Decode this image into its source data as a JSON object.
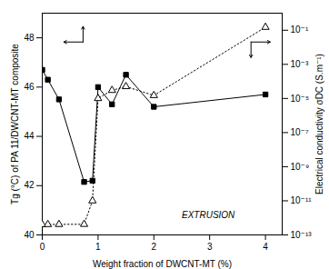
{
  "chart_data": {
    "type": "line",
    "xlabel": "Weight fraction of DWCNT-MT (%)",
    "ylabel": "Tg (°C) of PA 11/DWCNT-MT composite",
    "y2label": "Electrical conductivity σDC (S.m⁻¹)",
    "x": [
      0.0,
      0.1,
      0.3,
      0.75,
      0.9,
      1.0,
      1.25,
      1.5,
      2.0,
      4.0
    ],
    "series": [
      {
        "values": [
          46.7,
          46.3,
          45.5,
          42.15,
          42.2,
          46.0,
          45.3,
          46.5,
          45.2,
          45.7
        ],
        "color": "black",
        "marker": "square",
        "line_style": "solid"
      },
      {
        "values": [
          4e-13,
          4.1e-13,
          4.15e-13,
          4.2e-13,
          1e-11,
          1e-05,
          3e-05,
          5e-05,
          1.5e-05,
          0.15
        ],
        "color": "black",
        "marker": "open_triangle",
        "line_style": "dotted",
        "axis": "y2"
      }
    ],
    "xlim": [
      0,
      4.3
    ],
    "xticks": [
      0,
      1,
      2,
      3,
      4
    ],
    "ylim": [
      40,
      49
    ],
    "yticks": [
      40,
      42,
      44,
      46,
      48
    ],
    "y2lim": [
      1e-13,
      1.0
    ],
    "y2ticks": [
      {
        "value": 1e-13,
        "label": "10⁻¹³"
      },
      {
        "value": 1e-11,
        "label": "10⁻¹¹"
      },
      {
        "value": 1e-09,
        "label": "10⁻⁹"
      },
      {
        "value": 1e-07,
        "label": "10⁻⁷"
      },
      {
        "value": 1e-05,
        "label": "10⁻⁵"
      },
      {
        "value": 0.001,
        "label": "10⁻³"
      },
      {
        "value": 0.1,
        "label": "10⁻¹"
      }
    ],
    "log": "y2",
    "annotations": [
      {
        "text": "EXTRUSION",
        "x": 2.5,
        "y": 40.8
      }
    ]
  }
}
